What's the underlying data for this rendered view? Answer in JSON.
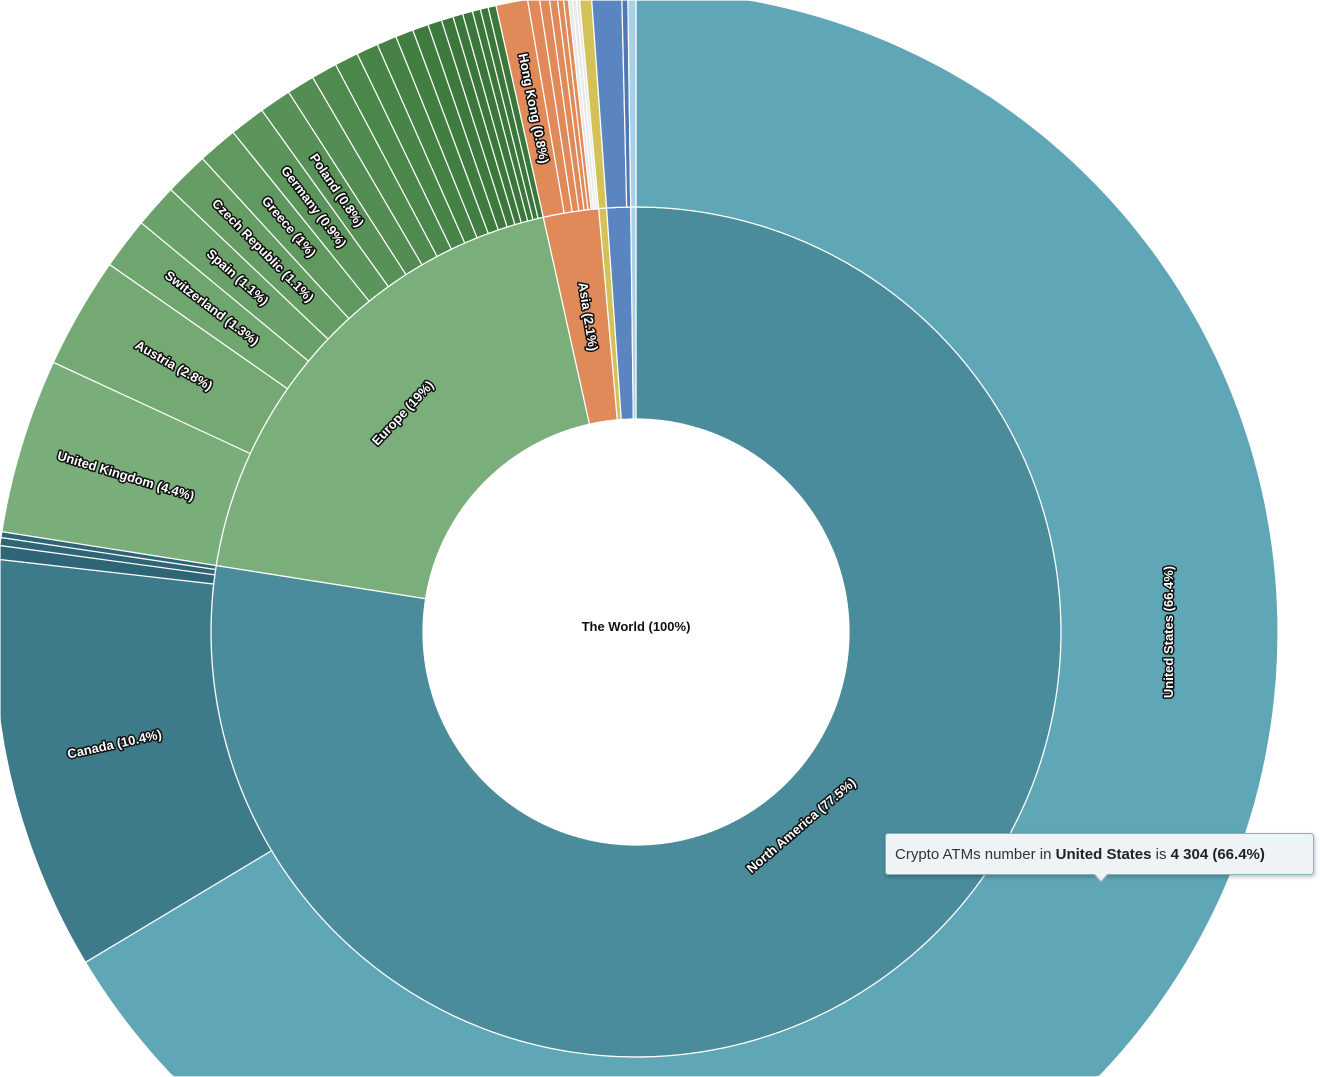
{
  "chart_data": {
    "type": "sunburst",
    "title": "Crypto ATMs number",
    "root": {
      "name": "The World",
      "percent": 100,
      "label": "The World (100%)"
    },
    "regions": [
      {
        "name": "North America",
        "percent": 77.5,
        "label": "North America (77.5%)",
        "color": "#4a8b9c",
        "children": [
          {
            "name": "United States",
            "percent": 66.4,
            "label": "United States (66.4%)",
            "color": "#5fa6b7"
          },
          {
            "name": "Canada",
            "percent": 10.4,
            "label": "Canada (10.4%)",
            "color": "#3d7b8b"
          },
          {
            "name": "",
            "percent": 0.35,
            "color": "#2f6677"
          },
          {
            "name": "",
            "percent": 0.2,
            "color": "#2f6677"
          },
          {
            "name": "",
            "percent": 0.15,
            "color": "#2f6677"
          }
        ]
      },
      {
        "name": "Europe",
        "percent": 19,
        "label": "Europe (19%)",
        "color": "#7aae7a",
        "children": [
          {
            "name": "United Kingdom",
            "percent": 4.4,
            "label": "United Kingdom (4.4%)",
            "color": "#79ad79"
          },
          {
            "name": "Austria",
            "percent": 2.8,
            "label": "Austria (2.8%)",
            "color": "#74a974"
          },
          {
            "name": "Switzerland",
            "percent": 1.3,
            "label": "Switzerland (1.3%)",
            "color": "#6fa56f"
          },
          {
            "name": "Spain",
            "percent": 1.1,
            "label": "Spain (1.1%)",
            "color": "#6aa16a"
          },
          {
            "name": "Czech Republic",
            "percent": 1.1,
            "label": "Czech Republic (1.1%)",
            "color": "#659d65"
          },
          {
            "name": "Greece",
            "percent": 1,
            "label": "Greece (1%)",
            "color": "#609960"
          },
          {
            "name": "Germany",
            "percent": 0.9,
            "label": "Germany (0.9%)",
            "color": "#5b955b"
          },
          {
            "name": "Poland",
            "percent": 0.8,
            "label": "Poland (0.8%)",
            "color": "#579157"
          },
          {
            "name": "",
            "percent": 0.7,
            "color": "#538d53"
          },
          {
            "name": "",
            "percent": 0.65,
            "color": "#4f8a4f"
          },
          {
            "name": "",
            "percent": 0.6,
            "color": "#4b874b"
          },
          {
            "name": "",
            "percent": 0.55,
            "color": "#488448"
          },
          {
            "name": "",
            "percent": 0.5,
            "color": "#458145"
          },
          {
            "name": "",
            "percent": 0.45,
            "color": "#427e42"
          },
          {
            "name": "",
            "percent": 0.4,
            "color": "#3f7b3f"
          },
          {
            "name": "",
            "percent": 0.35,
            "color": "#3d793d"
          },
          {
            "name": "",
            "percent": 0.3,
            "color": "#3b773b"
          },
          {
            "name": "",
            "percent": 0.25,
            "color": "#3b773b"
          },
          {
            "name": "",
            "percent": 0.25,
            "color": "#3b773b"
          },
          {
            "name": "",
            "percent": 0.2,
            "color": "#3b773b"
          },
          {
            "name": "",
            "percent": 0.2,
            "color": "#3b773b"
          },
          {
            "name": "",
            "percent": 0.2,
            "color": "#3b773b"
          }
        ]
      },
      {
        "name": "Asia",
        "percent": 2.1,
        "label": "Asia (2.1%)",
        "color": "#e08a5a",
        "children": [
          {
            "name": "Hong Kong",
            "percent": 0.8,
            "label": "Hong Kong (0.8%)",
            "color": "#e08a5a"
          },
          {
            "name": "",
            "percent": 0.3,
            "color": "#e08a5a"
          },
          {
            "name": "",
            "percent": 0.25,
            "color": "#e08a5a"
          },
          {
            "name": "",
            "percent": 0.2,
            "color": "#e08a5a"
          },
          {
            "name": "",
            "percent": 0.15,
            "color": "#e08a5a"
          },
          {
            "name": "",
            "percent": 0.12,
            "color": "#e08a5a"
          },
          {
            "name": "",
            "percent": 0.1,
            "color": "#e8e8e8"
          },
          {
            "name": "",
            "percent": 0.1,
            "color": "#e8e8e8"
          },
          {
            "name": "",
            "percent": 0.08,
            "color": "#e8e8e8"
          }
        ]
      },
      {
        "name": "",
        "percent": 0.3,
        "color": "#d3c25a",
        "children": [
          {
            "name": "",
            "percent": 0.3,
            "color": "#d3c25a"
          }
        ]
      },
      {
        "name": "",
        "percent": 0.9,
        "color": "#5b85c0",
        "children": [
          {
            "name": "",
            "percent": 0.75,
            "color": "#5b85c0"
          },
          {
            "name": "",
            "percent": 0.15,
            "color": "#4f78b5"
          }
        ]
      },
      {
        "name": "",
        "percent": 0.2,
        "color": "#a9cfe9",
        "children": [
          {
            "name": "",
            "percent": 0.2,
            "color": "#a9cfe9"
          }
        ]
      }
    ]
  },
  "tooltip": {
    "prefix": "Crypto ATMs number in ",
    "country": "United States",
    "middle": " is ",
    "value": "4 304 (66.4%)"
  }
}
